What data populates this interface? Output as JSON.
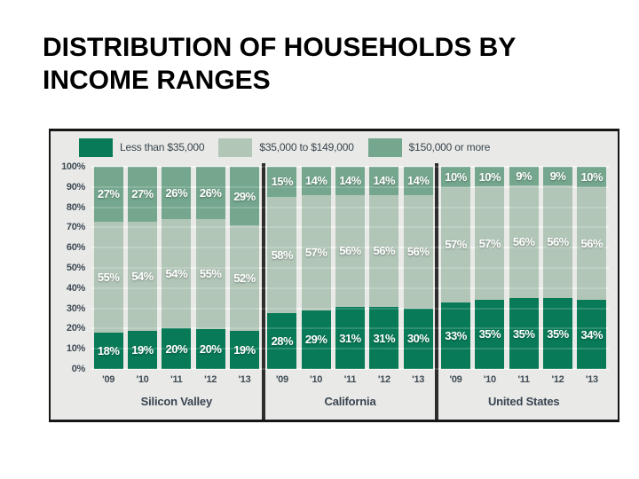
{
  "page": {
    "title_line1": "DISTRIBUTION OF HOUSEHOLDS BY",
    "title_line2": "INCOME RANGES"
  },
  "chart_data": {
    "type": "bar",
    "stacked": true,
    "title": "DISTRIBUTION OF HOUSEHOLDS BY INCOME RANGES",
    "xlabel": "",
    "ylabel": "",
    "ylim": [
      0,
      100
    ],
    "grid": true,
    "legend_position": "top",
    "yticks": [
      "100%",
      "90%",
      "80%",
      "70%",
      "60%",
      "50%",
      "40%",
      "30%",
      "20%",
      "10%",
      "0%"
    ],
    "series_meta": [
      {
        "name": "Less than $35,000",
        "color": "#087a58"
      },
      {
        "name": "$35,000 to $149,000",
        "color": "#b2c6b8"
      },
      {
        "name": "$150,000 or more",
        "color": "#75a78e"
      }
    ],
    "x_years": [
      "'09",
      "'10",
      "'11",
      "'12",
      "'13"
    ],
    "groups": [
      {
        "label": "Silicon Valley",
        "series": [
          {
            "name": "Less than $35,000",
            "values": [
              18,
              19,
              20,
              20,
              19
            ]
          },
          {
            "name": "$35,000 to $149,000",
            "values": [
              55,
              54,
              54,
              55,
              52
            ]
          },
          {
            "name": "$150,000 or more",
            "values": [
              27,
              27,
              26,
              26,
              29
            ]
          }
        ]
      },
      {
        "label": "California",
        "series": [
          {
            "name": "Less than $35,000",
            "values": [
              28,
              29,
              31,
              31,
              30
            ]
          },
          {
            "name": "$35,000 to $149,000",
            "values": [
              58,
              57,
              56,
              56,
              56
            ]
          },
          {
            "name": "$150,000 or more",
            "values": [
              15,
              14,
              14,
              14,
              14
            ]
          }
        ]
      },
      {
        "label": "United States",
        "series": [
          {
            "name": "Less than $35,000",
            "values": [
              33,
              35,
              35,
              35,
              34
            ]
          },
          {
            "name": "$35,000 to $149,000",
            "values": [
              57,
              57,
              56,
              56,
              56
            ]
          },
          {
            "name": "$150,000 or more",
            "values": [
              10,
              10,
              9,
              9,
              10
            ]
          }
        ]
      }
    ]
  },
  "colors": {
    "chart_background": "#e9eae7",
    "gridline": "#f5f5f2",
    "axis_text": "#3f4a55",
    "divider": "#2d2d2d",
    "segment_label": "#ffffff",
    "title_text": "#000000"
  }
}
